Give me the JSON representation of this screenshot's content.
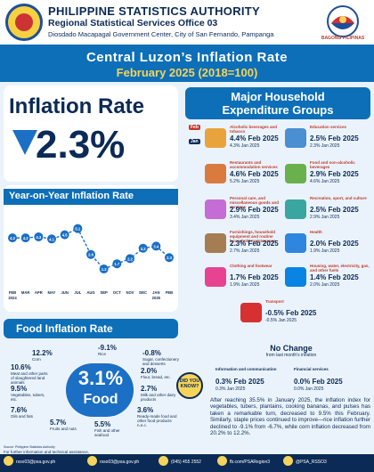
{
  "header": {
    "org": "PHILIPPINE STATISTICS AUTHORITY",
    "office": "Regional Statistical Services Office 03",
    "address": "Diosdado Macapagal Government Center, City of San Fernando, Pampanga",
    "brand": "BAGONG PILIPINAS"
  },
  "title": {
    "line1": "Central Luzon’s Inflation Rate",
    "line2": "February 2025 (2018=100)"
  },
  "inflation": {
    "label": "Inflation Rate",
    "value": "2.3%"
  },
  "yoy": {
    "title": "Year-on-Year Inflation Rate",
    "months": [
      "FEB 2024",
      "MAR",
      "APR",
      "MAY",
      "JUN",
      "JUL",
      "AUG",
      "SEP",
      "OCT",
      "NOV",
      "DEC",
      "JAN 2025",
      "FEB"
    ],
    "values": [
      4.2,
      4.2,
      4.3,
      4.1,
      4.5,
      5.1,
      2.6,
      1.2,
      1.7,
      2.2,
      3.2,
      3.4,
      2.3
    ],
    "labels": [
      "4.2",
      "4.2",
      "4.3",
      "4.1",
      "4.5",
      "5.1",
      "2.6",
      "1.2",
      "1.7",
      "2.2",
      "3.2",
      "3.4",
      "2.3"
    ]
  },
  "major_groups": {
    "title1": "Major Household",
    "title2": "Expenditure Groups",
    "tags": {
      "feb": "Feb",
      "jan": "Jan"
    },
    "items": [
      {
        "name": "Alcoholic beverages and tobacco",
        "value": "4.4",
        "prev": "4.3",
        "color": "#e8a33d"
      },
      {
        "name": "Education services",
        "value": "2.5",
        "prev": "2.3",
        "color": "#4a8fd1"
      },
      {
        "name": "Restaurants and accommodation services",
        "value": "4.6",
        "prev": "5.2",
        "color": "#d97b3f"
      },
      {
        "name": "Food and non-alcoholic beverages",
        "value": "2.9",
        "prev": "4.6",
        "color": "#6ab04c"
      },
      {
        "name": "Personal care, and miscellaneous goods and services",
        "value": "2.9",
        "prev": "3.4",
        "color": "#c56cd6"
      },
      {
        "name": "Recreation, sport, and culture",
        "value": "2.5",
        "prev": "2.9",
        "color": "#3aa6a0"
      },
      {
        "name": "Furnishings, household equipment and routine household maintenance",
        "value": "2.3",
        "prev": "2.7",
        "color": "#a67c52"
      },
      {
        "name": "Health",
        "value": "2.0",
        "prev": "1.9",
        "color": "#2e86de"
      },
      {
        "name": "Clothing and footwear",
        "value": "1.7",
        "prev": "1.9",
        "color": "#e84393"
      },
      {
        "name": "Housing, water, electricity, gas, and other fuels",
        "value": "1.4",
        "prev": "2.0",
        "color": "#0984e3"
      },
      {
        "name": "Transport",
        "value": "-0.5",
        "prev": "-0.5",
        "color": "#d63031"
      }
    ],
    "feb_suffix": "% Feb 2025",
    "jan_suffix": "% Jan 2025"
  },
  "food": {
    "title": "Food Inflation Rate",
    "value": "3.1%",
    "label": "Food",
    "items": [
      {
        "value": "12.2%",
        "name": "Corn"
      },
      {
        "value": "-9.1%",
        "name": "Rice"
      },
      {
        "value": "-0.8%",
        "name": "Sugar, confectionery and desserts"
      },
      {
        "value": "10.6%",
        "name": "Meat and other parts of slaughtered land animals"
      },
      {
        "value": "2.0%",
        "name": "Flour, bread, etc."
      },
      {
        "value": "9.5%",
        "name": "Vegetables, tubers, etc."
      },
      {
        "value": "2.7%",
        "name": "Milk and other dairy products"
      },
      {
        "value": "7.6%",
        "name": "Oils and fats"
      },
      {
        "value": "3.6%",
        "name": "Ready-made food and other food products n.e.c."
      },
      {
        "value": "5.7%",
        "name": "Fruits and nuts"
      },
      {
        "value": "5.5%",
        "name": "Fish and other seafood"
      }
    ],
    "dyk": "DID YOU KNOW?"
  },
  "no_change": {
    "title": "No Change",
    "subtitle": "from last month’s inflation",
    "items": [
      {
        "name": "Information and communication",
        "value": "0.3",
        "prev": "0.3"
      },
      {
        "name": "Financial services",
        "value": "0.0",
        "prev": "0.0"
      }
    ]
  },
  "paragraph": "After reaching 35.5% in January 2025, the inflation index for vegetables, tubers, plantains, cooking bananas, and pulses has taken a remarkable turn, decreased to 9.5% this February. Similarly, staple prices continued to improve—rice inflation further declined to -9.1% from -6.7%, while corn inflation decreased from 20.2% to 12.2%.",
  "source": "Source: Philippine Statistics Authority",
  "footer": {
    "further": "For further information and technical assistance,",
    "email": "rsso03@psa.gov.ph",
    "phone": "(045) 455 2552",
    "facebook": "fb.com/PSARegion3",
    "twitter": "@PSA_RSSO3"
  }
}
